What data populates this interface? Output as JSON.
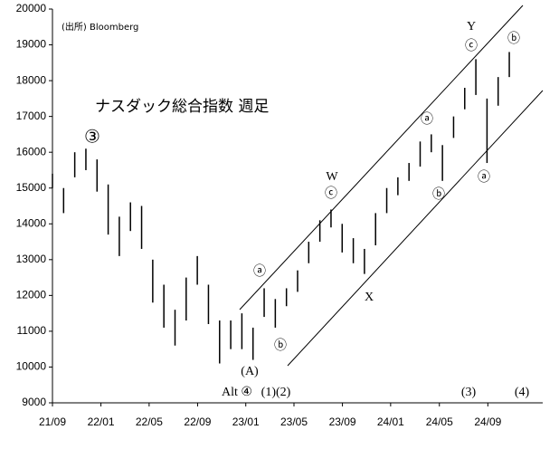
{
  "chart_data": {
    "type": "range",
    "title": "ナスダック総合指数 週足",
    "source": "(出所) Bloomberg",
    "x": [
      0,
      4,
      8,
      12,
      16,
      20,
      24,
      28,
      32,
      36,
      40,
      44,
      48,
      52,
      56,
      60,
      64,
      68,
      72,
      76,
      80,
      84,
      88,
      92,
      96,
      100,
      104,
      108,
      112,
      116,
      120,
      124,
      128,
      132,
      136,
      140,
      144,
      148,
      152,
      156,
      160,
      164
    ],
    "high": [
      15400,
      15000,
      16000,
      16100,
      15800,
      15100,
      14200,
      14600,
      14500,
      13000,
      12300,
      11600,
      12500,
      13100,
      12300,
      11300,
      11300,
      11500,
      11100,
      12200,
      11900,
      12200,
      12700,
      13500,
      14100,
      14400,
      14000,
      13600,
      13300,
      14300,
      15000,
      15300,
      15700,
      16300,
      16500,
      16200,
      17000,
      17800,
      18600,
      17500,
      18100,
      18800
    ],
    "low": [
      15000,
      14300,
      15300,
      15500,
      14900,
      13700,
      13100,
      13800,
      13300,
      11800,
      11100,
      10600,
      11300,
      12300,
      11200,
      10100,
      10500,
      10500,
      10200,
      11400,
      11100,
      11700,
      12100,
      12900,
      13500,
      13900,
      13200,
      12900,
      12600,
      13400,
      14300,
      14800,
      15200,
      15600,
      16000,
      15200,
      16400,
      17200,
      17600,
      15700,
      17300,
      18100
    ],
    "color": "#000000",
    "xlim": [
      0,
      176
    ],
    "xticks": [
      {
        "value": 0,
        "label": "21/09"
      },
      {
        "value": 17.4,
        "label": "22/01"
      },
      {
        "value": 34.7,
        "label": "22/05"
      },
      {
        "value": 52.1,
        "label": "22/09"
      },
      {
        "value": 69.4,
        "label": "23/01"
      },
      {
        "value": 86.7,
        "label": "23/05"
      },
      {
        "value": 104.1,
        "label": "23/09"
      },
      {
        "value": 121.4,
        "label": "24/01"
      },
      {
        "value": 138.9,
        "label": "24/05"
      },
      {
        "value": 156.3,
        "label": "24/09"
      }
    ],
    "ylim": [
      9000,
      20000
    ],
    "yticks": [
      9000,
      10000,
      11000,
      12000,
      13000,
      14000,
      15000,
      16000,
      17000,
      18000,
      19000,
      20000
    ],
    "annotations": [
      "③",
      "ⓐ",
      "ⓑ",
      "(A)",
      "Alt ④",
      "(1)(2)",
      "W",
      "ⓒ",
      "X",
      "ⓐ",
      "ⓑ",
      "Y",
      "ⓒ",
      "ⓐ",
      "ⓑ",
      "(3)",
      "(4)"
    ]
  }
}
